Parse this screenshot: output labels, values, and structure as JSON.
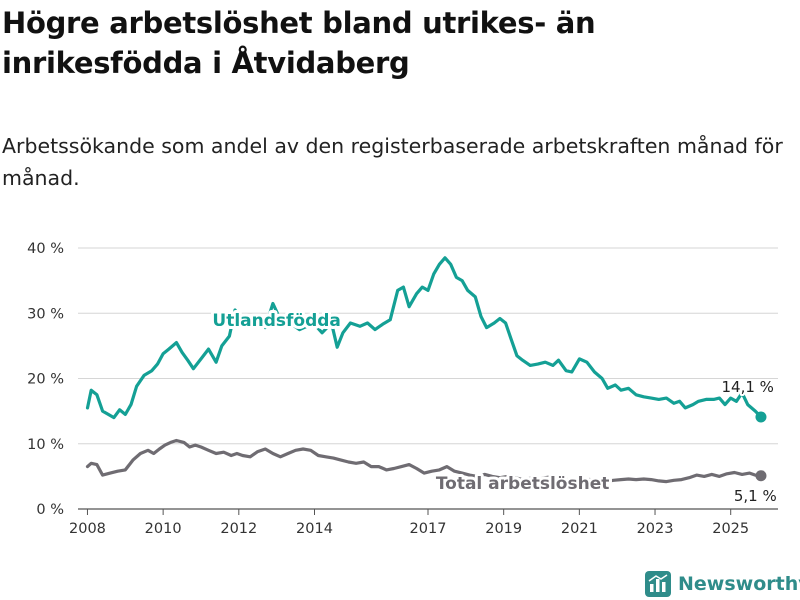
{
  "title": "Högre arbetslöshet bland utrikes- än inrikesfödda i Åtvidaberg",
  "subtitle": "Arbetssökande som andel av den registerbaserade arbetskraften månad för månad.",
  "brand": "Newsworthy",
  "colors": {
    "foreign": "#14a095",
    "total": "#6f6c72",
    "logo": "#2f8c8a",
    "grid": "#d6d6d6"
  },
  "chart_data": {
    "type": "line",
    "xlim": [
      2007.75,
      2026.25
    ],
    "ylim": [
      0,
      40
    ],
    "y_ticks": [
      0,
      10,
      20,
      30,
      40
    ],
    "y_tick_labels": [
      "0 %",
      "10 %",
      "20 %",
      "30 %",
      "40 %"
    ],
    "x_ticks": [
      2008,
      2010,
      2012,
      2014,
      2017,
      2019,
      2021,
      2023,
      2025
    ],
    "x_tick_labels": [
      "2008",
      "2010",
      "2012",
      "2014",
      "2017",
      "2019",
      "2021",
      "2023",
      "2025"
    ],
    "grid": true,
    "series": [
      {
        "name": "Utlandsfödda",
        "end_label": "14,1 %",
        "end_value": 14.1,
        "points": [
          [
            2008.0,
            15.5
          ],
          [
            2008.1,
            18.2
          ],
          [
            2008.25,
            17.5
          ],
          [
            2008.4,
            15.0
          ],
          [
            2008.55,
            14.5
          ],
          [
            2008.7,
            14.0
          ],
          [
            2008.85,
            15.2
          ],
          [
            2009.0,
            14.5
          ],
          [
            2009.15,
            16.0
          ],
          [
            2009.3,
            18.8
          ],
          [
            2009.5,
            20.5
          ],
          [
            2009.7,
            21.2
          ],
          [
            2009.85,
            22.2
          ],
          [
            2010.0,
            23.8
          ],
          [
            2010.15,
            24.5
          ],
          [
            2010.35,
            25.5
          ],
          [
            2010.5,
            24.0
          ],
          [
            2010.65,
            22.8
          ],
          [
            2010.8,
            21.5
          ],
          [
            2011.0,
            23.0
          ],
          [
            2011.2,
            24.5
          ],
          [
            2011.4,
            22.5
          ],
          [
            2011.55,
            25.0
          ],
          [
            2011.75,
            26.5
          ],
          [
            2011.9,
            30.5
          ],
          [
            2012.1,
            29.0
          ],
          [
            2012.3,
            28.0
          ],
          [
            2012.5,
            29.5
          ],
          [
            2012.7,
            27.8
          ],
          [
            2012.9,
            31.5
          ],
          [
            2013.1,
            29.0
          ],
          [
            2013.35,
            28.5
          ],
          [
            2013.6,
            27.5
          ],
          [
            2013.8,
            28.0
          ],
          [
            2014.0,
            28.3
          ],
          [
            2014.2,
            27.0
          ],
          [
            2014.45,
            28.5
          ],
          [
            2014.6,
            24.8
          ],
          [
            2014.75,
            27.0
          ],
          [
            2014.95,
            28.5
          ],
          [
            2015.2,
            28.0
          ],
          [
            2015.4,
            28.5
          ],
          [
            2015.6,
            27.5
          ],
          [
            2015.8,
            28.3
          ],
          [
            2016.0,
            29.0
          ],
          [
            2016.2,
            33.5
          ],
          [
            2016.35,
            34.0
          ],
          [
            2016.5,
            31.0
          ],
          [
            2016.7,
            33.0
          ],
          [
            2016.85,
            34.0
          ],
          [
            2017.0,
            33.5
          ],
          [
            2017.15,
            36.0
          ],
          [
            2017.3,
            37.5
          ],
          [
            2017.45,
            38.5
          ],
          [
            2017.6,
            37.5
          ],
          [
            2017.75,
            35.5
          ],
          [
            2017.9,
            35.0
          ],
          [
            2018.05,
            33.5
          ],
          [
            2018.25,
            32.5
          ],
          [
            2018.4,
            29.5
          ],
          [
            2018.55,
            27.8
          ],
          [
            2018.75,
            28.5
          ],
          [
            2018.9,
            29.2
          ],
          [
            2019.05,
            28.5
          ],
          [
            2019.2,
            26.0
          ],
          [
            2019.35,
            23.5
          ],
          [
            2019.5,
            22.8
          ],
          [
            2019.7,
            22.0
          ],
          [
            2019.9,
            22.2
          ],
          [
            2020.1,
            22.5
          ],
          [
            2020.3,
            22.0
          ],
          [
            2020.45,
            22.8
          ],
          [
            2020.65,
            21.2
          ],
          [
            2020.8,
            21.0
          ],
          [
            2021.0,
            23.0
          ],
          [
            2021.2,
            22.5
          ],
          [
            2021.4,
            21.0
          ],
          [
            2021.6,
            20.0
          ],
          [
            2021.75,
            18.5
          ],
          [
            2021.95,
            19.0
          ],
          [
            2022.1,
            18.2
          ],
          [
            2022.3,
            18.5
          ],
          [
            2022.5,
            17.5
          ],
          [
            2022.7,
            17.2
          ],
          [
            2022.9,
            17.0
          ],
          [
            2023.1,
            16.8
          ],
          [
            2023.3,
            17.0
          ],
          [
            2023.5,
            16.2
          ],
          [
            2023.65,
            16.5
          ],
          [
            2023.8,
            15.5
          ],
          [
            2024.0,
            16.0
          ],
          [
            2024.15,
            16.5
          ],
          [
            2024.35,
            16.8
          ],
          [
            2024.55,
            16.8
          ],
          [
            2024.7,
            17.0
          ],
          [
            2024.85,
            16.0
          ],
          [
            2025.0,
            17.0
          ],
          [
            2025.15,
            16.5
          ],
          [
            2025.3,
            17.8
          ],
          [
            2025.45,
            16.0
          ],
          [
            2025.65,
            15.0
          ],
          [
            2025.8,
            14.1
          ]
        ]
      },
      {
        "name": "Total arbetslöshet",
        "end_label": "5,1 %",
        "end_value": 5.1,
        "points": [
          [
            2008.0,
            6.5
          ],
          [
            2008.1,
            7.0
          ],
          [
            2008.25,
            6.8
          ],
          [
            2008.4,
            5.2
          ],
          [
            2008.6,
            5.5
          ],
          [
            2008.8,
            5.8
          ],
          [
            2009.0,
            6.0
          ],
          [
            2009.2,
            7.5
          ],
          [
            2009.4,
            8.5
          ],
          [
            2009.6,
            9.0
          ],
          [
            2009.75,
            8.5
          ],
          [
            2009.9,
            9.2
          ],
          [
            2010.05,
            9.8
          ],
          [
            2010.2,
            10.2
          ],
          [
            2010.35,
            10.5
          ],
          [
            2010.55,
            10.2
          ],
          [
            2010.7,
            9.5
          ],
          [
            2010.85,
            9.8
          ],
          [
            2011.0,
            9.5
          ],
          [
            2011.2,
            9.0
          ],
          [
            2011.4,
            8.5
          ],
          [
            2011.6,
            8.7
          ],
          [
            2011.8,
            8.2
          ],
          [
            2011.95,
            8.5
          ],
          [
            2012.1,
            8.2
          ],
          [
            2012.3,
            8.0
          ],
          [
            2012.5,
            8.8
          ],
          [
            2012.7,
            9.2
          ],
          [
            2012.9,
            8.5
          ],
          [
            2013.1,
            8.0
          ],
          [
            2013.3,
            8.5
          ],
          [
            2013.5,
            9.0
          ],
          [
            2013.7,
            9.2
          ],
          [
            2013.9,
            9.0
          ],
          [
            2014.1,
            8.2
          ],
          [
            2014.3,
            8.0
          ],
          [
            2014.5,
            7.8
          ],
          [
            2014.7,
            7.5
          ],
          [
            2014.9,
            7.2
          ],
          [
            2015.1,
            7.0
          ],
          [
            2015.3,
            7.2
          ],
          [
            2015.5,
            6.5
          ],
          [
            2015.7,
            6.5
          ],
          [
            2015.9,
            6.0
          ],
          [
            2016.1,
            6.2
          ],
          [
            2016.3,
            6.5
          ],
          [
            2016.5,
            6.8
          ],
          [
            2016.7,
            6.2
          ],
          [
            2016.9,
            5.5
          ],
          [
            2017.1,
            5.8
          ],
          [
            2017.3,
            6.0
          ],
          [
            2017.5,
            6.5
          ],
          [
            2017.7,
            5.8
          ],
          [
            2017.9,
            5.5
          ],
          [
            2018.1,
            5.2
          ],
          [
            2018.3,
            5.0
          ],
          [
            2018.5,
            5.3
          ],
          [
            2018.7,
            5.0
          ],
          [
            2018.9,
            4.8
          ],
          [
            2019.1,
            5.0
          ],
          [
            2019.3,
            4.8
          ],
          [
            2019.5,
            4.5
          ],
          [
            2019.7,
            4.7
          ],
          [
            2019.9,
            4.5
          ],
          [
            2020.1,
            4.8
          ],
          [
            2020.3,
            5.0
          ],
          [
            2020.5,
            4.6
          ],
          [
            2020.7,
            4.5
          ],
          [
            2020.9,
            4.4
          ],
          [
            2021.1,
            4.6
          ],
          [
            2021.3,
            4.5
          ],
          [
            2021.5,
            4.3
          ],
          [
            2021.7,
            4.2
          ],
          [
            2021.9,
            4.4
          ],
          [
            2022.1,
            4.5
          ],
          [
            2022.3,
            4.6
          ],
          [
            2022.5,
            4.5
          ],
          [
            2022.7,
            4.6
          ],
          [
            2022.9,
            4.5
          ],
          [
            2023.1,
            4.3
          ],
          [
            2023.3,
            4.2
          ],
          [
            2023.5,
            4.4
          ],
          [
            2023.7,
            4.5
          ],
          [
            2023.9,
            4.8
          ],
          [
            2024.1,
            5.2
          ],
          [
            2024.3,
            5.0
          ],
          [
            2024.5,
            5.3
          ],
          [
            2024.7,
            5.0
          ],
          [
            2024.9,
            5.4
          ],
          [
            2025.1,
            5.6
          ],
          [
            2025.3,
            5.3
          ],
          [
            2025.5,
            5.5
          ],
          [
            2025.65,
            5.2
          ],
          [
            2025.8,
            5.1
          ]
        ]
      }
    ]
  }
}
